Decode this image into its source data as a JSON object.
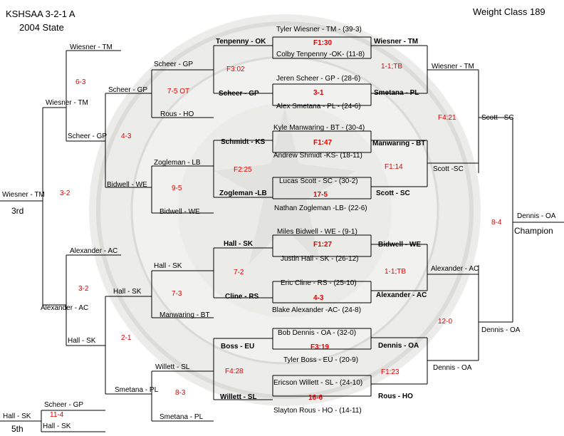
{
  "header": {
    "tournament": "KSHSAA 3-2-1 A",
    "event": "2004 State",
    "weight_label": "Weight Class",
    "weight_value": "189"
  },
  "placements": {
    "third_label": "3rd",
    "fifth_label": "5th",
    "champion_label": "Champion"
  },
  "championship": {
    "r1": [
      {
        "top": "Tyler Wiesner - TM - (39-3)",
        "bottom": "Colby Tenpenny -OK- (11-8)",
        "result": "F1:30"
      },
      {
        "top": "Jeren Scheer - GP - (28-6)",
        "bottom": "Alex Smetana - PL - (24-6)",
        "result": "3-1"
      },
      {
        "top": "Kyle Manwaring - BT - (30-4)",
        "bottom": "Andrew Shmidt -KS- (18-11)",
        "result": "F1:47"
      },
      {
        "top": "Lucas Scott - SC - (30-2)",
        "bottom": "Nathan Zogleman -LB- (22-6)",
        "result": "17-5"
      },
      {
        "top": "Miles Bidwell - WE - (9-1)",
        "bottom": "Justin Hall - SK - (26-12)",
        "result": "F1:27"
      },
      {
        "top": "Eric Cline - RS - (25-10)",
        "bottom": "Blake Alexander -AC- (24-8)",
        "result": "4-3"
      },
      {
        "top": "Bob Dennis - OA - (32-0)",
        "bottom": "Tyler Boss - EU - (20-9)",
        "result": "F3:19"
      },
      {
        "top": "Ericson Willett - SL - (24-10)",
        "bottom": "Slayton Rous - HO - (14-11)",
        "result": "16-6"
      }
    ],
    "qf": [
      {
        "name": "Wiesner - TM"
      },
      {
        "name": "Smetana - PL"
      },
      {
        "name": "Manwaring - BT"
      },
      {
        "name": "Scott - SC"
      },
      {
        "name": "Bidwell - WE"
      },
      {
        "name": "Alexander - AC"
      },
      {
        "name": "Dennis - OA"
      },
      {
        "name": "Rous - HO"
      }
    ],
    "qf_results": [
      "1-1;TB",
      "F1:14",
      "1-1;TB",
      "F1:23"
    ],
    "sf": [
      {
        "name": "Wiesner - TM"
      },
      {
        "name": "Scott -SC"
      },
      {
        "name": "Alexander - AC"
      },
      {
        "name": "Dennis - OA"
      }
    ],
    "sf_results": [
      "F4:21",
      "12-0"
    ],
    "final": [
      {
        "name": "Scott - SC"
      },
      {
        "name": "Dennis - OA"
      }
    ],
    "final_result": "8-4",
    "champion": "Dennis - OA"
  },
  "consolation": {
    "c1": [
      {
        "top": "Tenpenny - OK",
        "bottom": "Scheer - GP",
        "result": "F3:02"
      },
      {
        "top": "Schmidt - KS",
        "bottom": "Zogleman -LB",
        "result": "F2:25"
      },
      {
        "top": "Hall - SK",
        "bottom": "Cline - RS",
        "result": "7-2"
      },
      {
        "top": "Boss - EU",
        "bottom": "Willett - SL",
        "result": "F4:28"
      }
    ],
    "c2": [
      {
        "top": "Scheer - GP",
        "bottom": "Rous - HO",
        "result": "7-5 OT"
      },
      {
        "top": "Zogleman - LB",
        "bottom": "Bidwell - WE",
        "result": "9-5"
      },
      {
        "top": "Hall - SK",
        "bottom": "Manwaring - BT",
        "result": "7-3"
      },
      {
        "top": "Willett - SL",
        "bottom": "Smetana - PL",
        "result": "8-3"
      }
    ],
    "c3": [
      {
        "top": "Scheer - GP",
        "bottom": "Bidwell - WE",
        "result": "4-3"
      },
      {
        "top": "Hall - SK",
        "bottom": "Smetana - PL",
        "result": "2-1"
      }
    ],
    "c4": [
      {
        "top": "Wiesner - TM",
        "bottom": "Scheer - GP",
        "result": "6-3"
      },
      {
        "top": "Alexander - AC",
        "bottom": "Hall - SK",
        "result": "3-2"
      }
    ],
    "c5": [
      {
        "top": "Wiesner - TM",
        "bottom": "Alexander - AC",
        "result": "3-2"
      }
    ],
    "third": "Wiesner - TM",
    "fifth_match": {
      "top": "Scheer - GP",
      "bottom": "Hall - SK",
      "result": "11-4"
    },
    "fifth": "Hall - SK"
  }
}
